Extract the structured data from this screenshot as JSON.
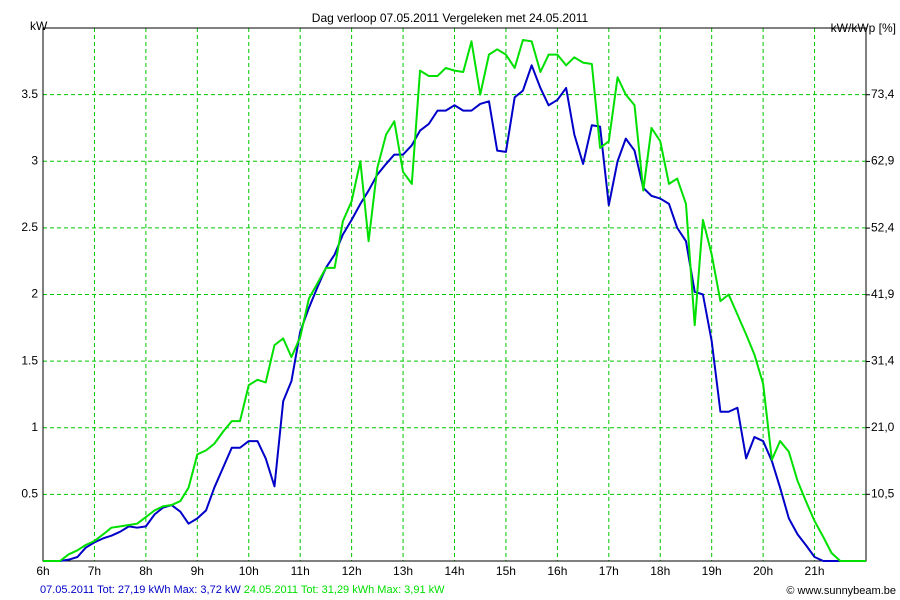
{
  "chart_data": {
    "type": "line",
    "title": "Dag  verloop 07.05.2011   Vergeleken met 24.05.2011",
    "y_label": "kW",
    "y2_label": "kW/kWp [%]",
    "copyright": "© www.sunnybeam.be",
    "grid": true,
    "grid_color": "#00c800",
    "xlim": [
      6,
      22
    ],
    "xticks": [
      {
        "value": 6,
        "label": "6h"
      },
      {
        "value": 7,
        "label": "7h"
      },
      {
        "value": 8,
        "label": "8h"
      },
      {
        "value": 9,
        "label": "9h"
      },
      {
        "value": 10,
        "label": "10h"
      },
      {
        "value": 11,
        "label": "11h"
      },
      {
        "value": 12,
        "label": "12h"
      },
      {
        "value": 13,
        "label": "13h"
      },
      {
        "value": 14,
        "label": "14h"
      },
      {
        "value": 15,
        "label": "15h"
      },
      {
        "value": 16,
        "label": "16h"
      },
      {
        "value": 17,
        "label": "17h"
      },
      {
        "value": 18,
        "label": "18h"
      },
      {
        "value": 19,
        "label": "19h"
      },
      {
        "value": 20,
        "label": "20h"
      },
      {
        "value": 21,
        "label": "21h"
      }
    ],
    "ylim": [
      0,
      4
    ],
    "yticks": [
      0.5,
      1,
      1.5,
      2,
      2.5,
      3,
      3.5
    ],
    "y2lim": [
      0,
      83.9
    ],
    "y2ticks": [
      {
        "value": 10.5,
        "label": "10,5"
      },
      {
        "value": 21.0,
        "label": "21,0"
      },
      {
        "value": 31.4,
        "label": "31,4"
      },
      {
        "value": 41.9,
        "label": "41,9"
      },
      {
        "value": 52.4,
        "label": "52,4"
      },
      {
        "value": 62.9,
        "label": "62,9"
      },
      {
        "value": 73.4,
        "label": "73,4"
      }
    ],
    "x": [
      6,
      6.17,
      6.33,
      6.5,
      6.67,
      6.83,
      7,
      7.17,
      7.33,
      7.5,
      7.67,
      7.83,
      8,
      8.17,
      8.33,
      8.5,
      8.67,
      8.83,
      9,
      9.17,
      9.33,
      9.5,
      9.67,
      9.83,
      10,
      10.17,
      10.33,
      10.5,
      10.67,
      10.83,
      11,
      11.17,
      11.33,
      11.5,
      11.67,
      11.83,
      12,
      12.17,
      12.33,
      12.5,
      12.67,
      12.83,
      13,
      13.17,
      13.33,
      13.5,
      13.67,
      13.83,
      14,
      14.17,
      14.33,
      14.5,
      14.67,
      14.83,
      15,
      15.17,
      15.33,
      15.5,
      15.67,
      15.83,
      16,
      16.17,
      16.33,
      16.5,
      16.67,
      16.83,
      17,
      17.17,
      17.33,
      17.5,
      17.67,
      17.83,
      18,
      18.17,
      18.33,
      18.5,
      18.67,
      18.83,
      19,
      19.17,
      19.33,
      19.5,
      19.67,
      19.83,
      20,
      20.17,
      20.33,
      20.5,
      20.67,
      20.83,
      21,
      21.17,
      21.33,
      21.5,
      21.67,
      21.83,
      22
    ],
    "series": [
      {
        "name": "07.05.2011 Tot: 27,19 kWh Max: 3,72 kW",
        "color": "#0000c8",
        "values": [
          0,
          0,
          0,
          0.01,
          0.03,
          0.1,
          0.14,
          0.17,
          0.19,
          0.22,
          0.26,
          0.25,
          0.26,
          0.35,
          0.4,
          0.42,
          0.37,
          0.28,
          0.32,
          0.38,
          0.55,
          0.7,
          0.85,
          0.85,
          0.9,
          0.9,
          0.77,
          0.56,
          1.2,
          1.35,
          1.72,
          1.9,
          2.05,
          2.2,
          2.3,
          2.45,
          2.56,
          2.68,
          2.78,
          2.9,
          2.98,
          3.05,
          3.05,
          3.12,
          3.23,
          3.28,
          3.38,
          3.38,
          3.42,
          3.38,
          3.38,
          3.43,
          3.45,
          3.08,
          3.07,
          3.48,
          3.53,
          3.72,
          3.55,
          3.42,
          3.46,
          3.55,
          3.2,
          2.98,
          3.27,
          3.26,
          2.67,
          3.0,
          3.17,
          3.08,
          2.8,
          2.74,
          2.72,
          2.68,
          2.5,
          2.4,
          2.02,
          2.0,
          1.65,
          1.12,
          1.12,
          1.15,
          0.77,
          0.93,
          0.9,
          0.75,
          0.55,
          0.32,
          0.2,
          0.12,
          0.03,
          0,
          0,
          0,
          0,
          0,
          0
        ]
      },
      {
        "name": "24.05.2011 Tot: 31,29 kWh Max: 3,91 kW",
        "color": "#00e000",
        "values": [
          0,
          0,
          0,
          0.05,
          0.08,
          0.12,
          0.15,
          0.2,
          0.25,
          0.26,
          0.27,
          0.28,
          0.33,
          0.38,
          0.41,
          0.42,
          0.45,
          0.55,
          0.8,
          0.83,
          0.88,
          0.97,
          1.05,
          1.05,
          1.32,
          1.36,
          1.34,
          1.62,
          1.67,
          1.53,
          1.68,
          1.97,
          2.08,
          2.2,
          2.2,
          2.55,
          2.7,
          3.0,
          2.4,
          2.95,
          3.2,
          3.3,
          2.92,
          2.83,
          3.68,
          3.64,
          3.64,
          3.7,
          3.68,
          3.67,
          3.9,
          3.5,
          3.8,
          3.84,
          3.8,
          3.7,
          3.91,
          3.9,
          3.67,
          3.8,
          3.8,
          3.72,
          3.78,
          3.74,
          3.73,
          3.1,
          3.15,
          3.63,
          3.5,
          3.42,
          2.78,
          3.25,
          3.15,
          2.83,
          2.87,
          2.68,
          1.77,
          2.56,
          2.3,
          1.95,
          2.0,
          1.85,
          1.7,
          1.55,
          1.33,
          0.76,
          0.9,
          0.82,
          0.6,
          0.45,
          0.3,
          0.18,
          0.06,
          0,
          0,
          0,
          0
        ]
      }
    ]
  }
}
